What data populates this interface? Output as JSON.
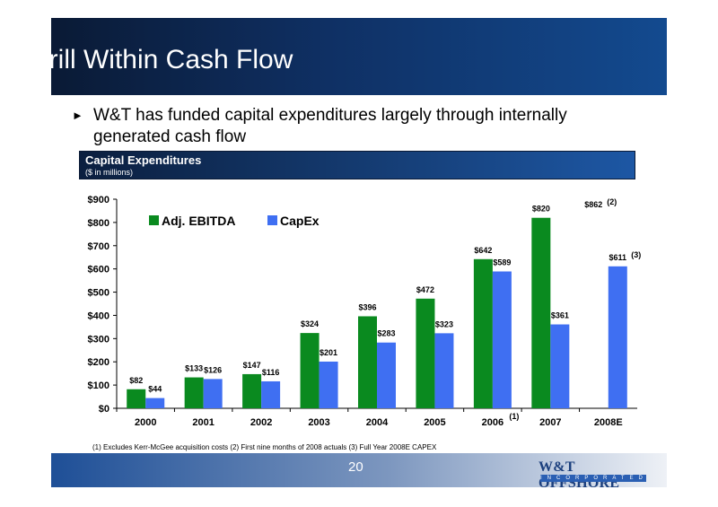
{
  "slide": {
    "title": "Drill Within Cash Flow",
    "bullet": "W&T has funded capital expenditures largely through internally generated cash flow",
    "bullet_marker": "►",
    "page_number": "20",
    "footnote": "(1) Excludes Kerr-McGee acquisition costs  (2) First nine months of 2008 actuals  (3) Full Year 2008E CAPEX",
    "logo_text": "W&T OFFSHORE",
    "logo_sub": "INCORPORATED"
  },
  "chart_header": {
    "title": "Capital Expenditures",
    "subtitle": "($ in millions)"
  },
  "chart_data": {
    "type": "bar",
    "categories": [
      "2000",
      "2001",
      "2002",
      "2003",
      "2004",
      "2005",
      "2006",
      "2007",
      "2008E"
    ],
    "category_notes": [
      "",
      "",
      "",
      "",
      "",
      "",
      "(1)",
      "",
      ""
    ],
    "series": [
      {
        "name": "Adj. EBITDA",
        "color": "#0a8a1f",
        "values": [
          82,
          133,
          147,
          324,
          396,
          472,
          642,
          820,
          862
        ],
        "drawn": [
          true,
          true,
          true,
          true,
          true,
          true,
          true,
          true,
          false
        ],
        "labels": [
          "$82",
          "$133",
          "$147",
          "$324",
          "$396",
          "$472",
          "$642",
          "$820",
          "$862"
        ],
        "label_notes": [
          "",
          "",
          "",
          "",
          "",
          "",
          "",
          "",
          "(2)"
        ]
      },
      {
        "name": "CapEx",
        "color": "#3f6ff2",
        "values": [
          44,
          126,
          116,
          201,
          283,
          323,
          589,
          361,
          611
        ],
        "drawn": [
          true,
          true,
          true,
          true,
          true,
          true,
          true,
          true,
          true
        ],
        "labels": [
          "$44",
          "$126",
          "$116",
          "$201",
          "$283",
          "$323",
          "$589",
          "$361",
          "$611"
        ],
        "label_notes": [
          "",
          "",
          "",
          "",
          "",
          "",
          "",
          "",
          "(3)"
        ]
      }
    ],
    "y_ticks": [
      "$0",
      "$100",
      "$200",
      "$300",
      "$400",
      "$500",
      "$600",
      "$700",
      "$800",
      "$900"
    ],
    "ylim": [
      0,
      900
    ],
    "grid": false,
    "legend_position": "top-left"
  }
}
